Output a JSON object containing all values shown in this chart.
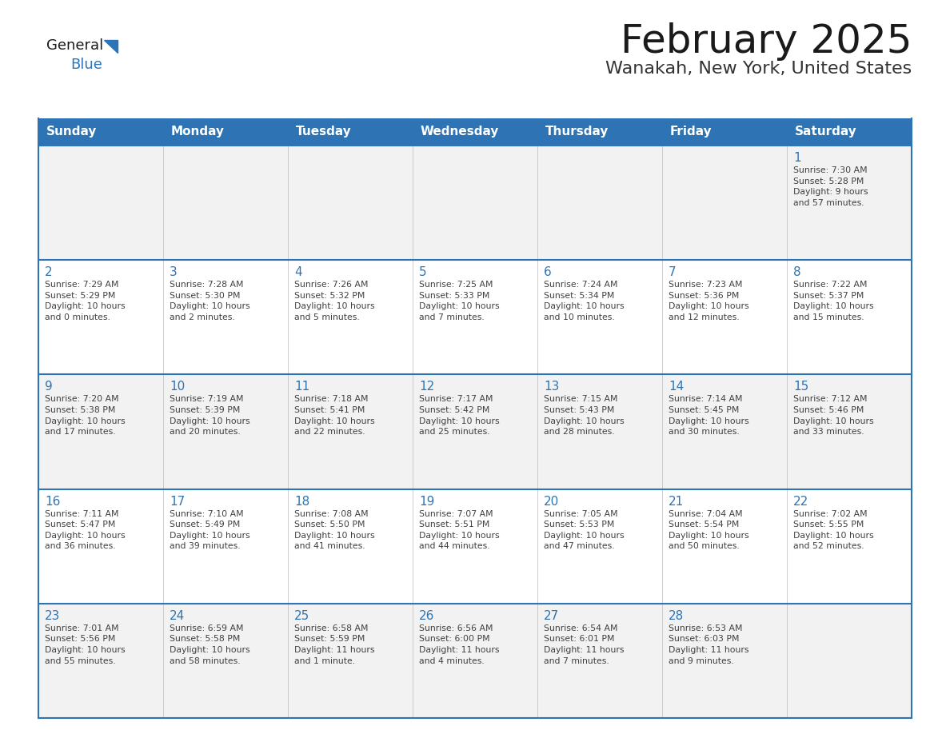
{
  "title": "February 2025",
  "subtitle": "Wanakah, New York, United States",
  "header_bg": "#2E74B5",
  "header_text_color": "#FFFFFF",
  "cell_border_color": "#2E74B5",
  "day_number_color": "#2E74B5",
  "info_text_color": "#404040",
  "background_color": "#FFFFFF",
  "row_bg_even": "#F2F2F2",
  "row_bg_odd": "#FFFFFF",
  "days_of_week": [
    "Sunday",
    "Monday",
    "Tuesday",
    "Wednesday",
    "Thursday",
    "Friday",
    "Saturday"
  ],
  "weeks": [
    [
      {
        "day": null,
        "info": null
      },
      {
        "day": null,
        "info": null
      },
      {
        "day": null,
        "info": null
      },
      {
        "day": null,
        "info": null
      },
      {
        "day": null,
        "info": null
      },
      {
        "day": null,
        "info": null
      },
      {
        "day": 1,
        "info": "Sunrise: 7:30 AM\nSunset: 5:28 PM\nDaylight: 9 hours\nand 57 minutes."
      }
    ],
    [
      {
        "day": 2,
        "info": "Sunrise: 7:29 AM\nSunset: 5:29 PM\nDaylight: 10 hours\nand 0 minutes."
      },
      {
        "day": 3,
        "info": "Sunrise: 7:28 AM\nSunset: 5:30 PM\nDaylight: 10 hours\nand 2 minutes."
      },
      {
        "day": 4,
        "info": "Sunrise: 7:26 AM\nSunset: 5:32 PM\nDaylight: 10 hours\nand 5 minutes."
      },
      {
        "day": 5,
        "info": "Sunrise: 7:25 AM\nSunset: 5:33 PM\nDaylight: 10 hours\nand 7 minutes."
      },
      {
        "day": 6,
        "info": "Sunrise: 7:24 AM\nSunset: 5:34 PM\nDaylight: 10 hours\nand 10 minutes."
      },
      {
        "day": 7,
        "info": "Sunrise: 7:23 AM\nSunset: 5:36 PM\nDaylight: 10 hours\nand 12 minutes."
      },
      {
        "day": 8,
        "info": "Sunrise: 7:22 AM\nSunset: 5:37 PM\nDaylight: 10 hours\nand 15 minutes."
      }
    ],
    [
      {
        "day": 9,
        "info": "Sunrise: 7:20 AM\nSunset: 5:38 PM\nDaylight: 10 hours\nand 17 minutes."
      },
      {
        "day": 10,
        "info": "Sunrise: 7:19 AM\nSunset: 5:39 PM\nDaylight: 10 hours\nand 20 minutes."
      },
      {
        "day": 11,
        "info": "Sunrise: 7:18 AM\nSunset: 5:41 PM\nDaylight: 10 hours\nand 22 minutes."
      },
      {
        "day": 12,
        "info": "Sunrise: 7:17 AM\nSunset: 5:42 PM\nDaylight: 10 hours\nand 25 minutes."
      },
      {
        "day": 13,
        "info": "Sunrise: 7:15 AM\nSunset: 5:43 PM\nDaylight: 10 hours\nand 28 minutes."
      },
      {
        "day": 14,
        "info": "Sunrise: 7:14 AM\nSunset: 5:45 PM\nDaylight: 10 hours\nand 30 minutes."
      },
      {
        "day": 15,
        "info": "Sunrise: 7:12 AM\nSunset: 5:46 PM\nDaylight: 10 hours\nand 33 minutes."
      }
    ],
    [
      {
        "day": 16,
        "info": "Sunrise: 7:11 AM\nSunset: 5:47 PM\nDaylight: 10 hours\nand 36 minutes."
      },
      {
        "day": 17,
        "info": "Sunrise: 7:10 AM\nSunset: 5:49 PM\nDaylight: 10 hours\nand 39 minutes."
      },
      {
        "day": 18,
        "info": "Sunrise: 7:08 AM\nSunset: 5:50 PM\nDaylight: 10 hours\nand 41 minutes."
      },
      {
        "day": 19,
        "info": "Sunrise: 7:07 AM\nSunset: 5:51 PM\nDaylight: 10 hours\nand 44 minutes."
      },
      {
        "day": 20,
        "info": "Sunrise: 7:05 AM\nSunset: 5:53 PM\nDaylight: 10 hours\nand 47 minutes."
      },
      {
        "day": 21,
        "info": "Sunrise: 7:04 AM\nSunset: 5:54 PM\nDaylight: 10 hours\nand 50 minutes."
      },
      {
        "day": 22,
        "info": "Sunrise: 7:02 AM\nSunset: 5:55 PM\nDaylight: 10 hours\nand 52 minutes."
      }
    ],
    [
      {
        "day": 23,
        "info": "Sunrise: 7:01 AM\nSunset: 5:56 PM\nDaylight: 10 hours\nand 55 minutes."
      },
      {
        "day": 24,
        "info": "Sunrise: 6:59 AM\nSunset: 5:58 PM\nDaylight: 10 hours\nand 58 minutes."
      },
      {
        "day": 25,
        "info": "Sunrise: 6:58 AM\nSunset: 5:59 PM\nDaylight: 11 hours\nand 1 minute."
      },
      {
        "day": 26,
        "info": "Sunrise: 6:56 AM\nSunset: 6:00 PM\nDaylight: 11 hours\nand 4 minutes."
      },
      {
        "day": 27,
        "info": "Sunrise: 6:54 AM\nSunset: 6:01 PM\nDaylight: 11 hours\nand 7 minutes."
      },
      {
        "day": 28,
        "info": "Sunrise: 6:53 AM\nSunset: 6:03 PM\nDaylight: 11 hours\nand 9 minutes."
      },
      {
        "day": null,
        "info": null
      }
    ]
  ],
  "logo_text_general": "General",
  "logo_text_blue": "Blue",
  "logo_triangle_color": "#2E74B5"
}
